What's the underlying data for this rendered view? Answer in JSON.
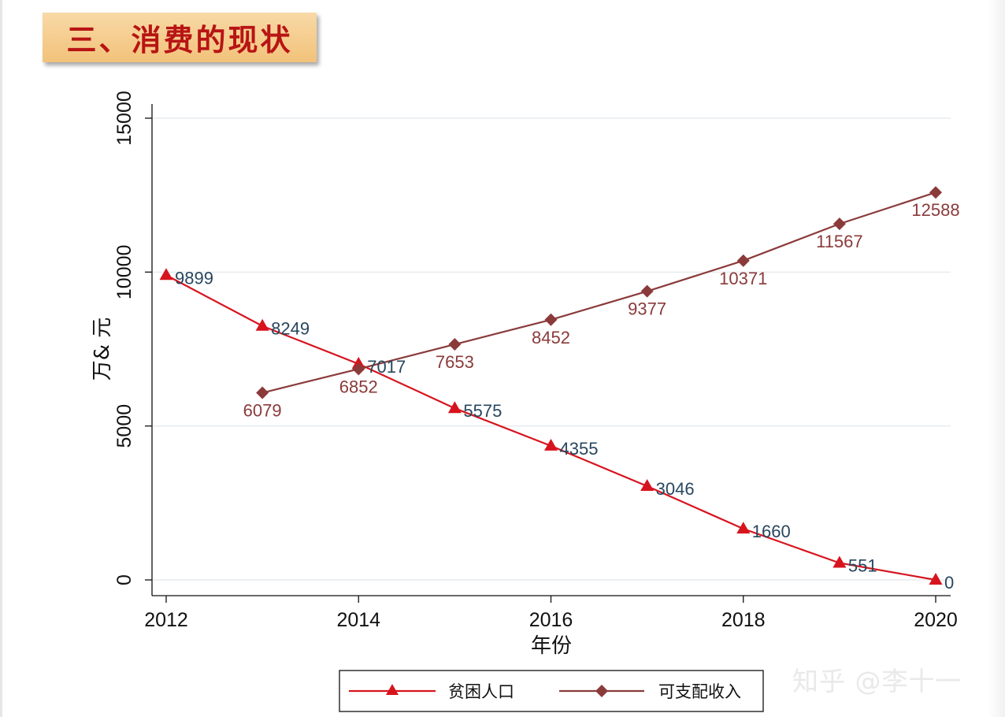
{
  "header": {
    "title": "三、消费的现状"
  },
  "watermark": "知乎 @李十一",
  "colors": {
    "poverty": "#d7141e",
    "income": "#8b3a3a",
    "label_poverty": "#28465e",
    "label_income": "#8b3a3a",
    "grid": "#e7ecef"
  },
  "chart_data": {
    "type": "line",
    "xlabel": "年份",
    "ylabel": "万& 元",
    "xlim": [
      2012,
      2020
    ],
    "ylim": [
      0,
      15000
    ],
    "xticks": [
      2012,
      2014,
      2016,
      2018,
      2020
    ],
    "yticks": [
      0,
      5000,
      10000,
      15000
    ],
    "grid": true,
    "legend_position": "bottom",
    "series": [
      {
        "name": "贫困人口",
        "marker": "triangle",
        "x": [
          2012,
          2013,
          2014,
          2015,
          2016,
          2017,
          2018,
          2019,
          2020
        ],
        "values": [
          9899,
          8249,
          7017,
          5575,
          4355,
          3046,
          1660,
          551,
          0
        ]
      },
      {
        "name": "可支配收入",
        "marker": "diamond",
        "x": [
          2013,
          2014,
          2015,
          2016,
          2017,
          2018,
          2019,
          2020
        ],
        "values": [
          6079,
          6852,
          7653,
          8452,
          9377,
          10371,
          11567,
          12588
        ]
      }
    ]
  }
}
